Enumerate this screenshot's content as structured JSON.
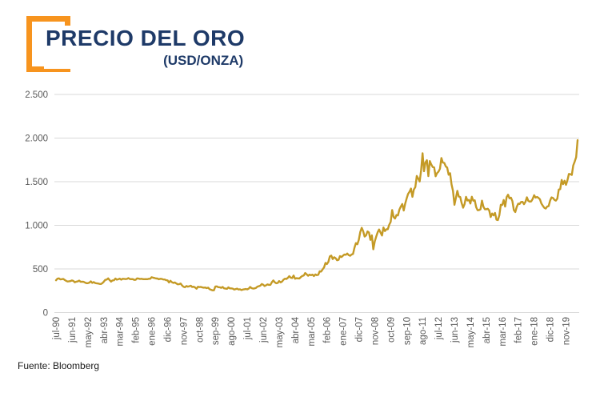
{
  "header": {
    "title": "PRECIO DEL ORO",
    "subtitle": "(USD/ONZA)"
  },
  "source": "Fuente: Bloomberg",
  "colors": {
    "accent_orange": "#F7941E",
    "title_navy": "#1E3A68",
    "line_gold": "#C49A26",
    "gridline": "#D9D9D9",
    "axis_text": "#595959"
  },
  "chart_data": {
    "type": "line",
    "title": "PRECIO DEL ORO",
    "subtitle": "(USD/ONZA)",
    "source": "Fuente: Bloomberg",
    "xlabel": "",
    "ylabel": "",
    "ylim": [
      0,
      2500
    ],
    "y_ticks": [
      0,
      500,
      1000,
      1500,
      2000,
      2500
    ],
    "y_tick_labels": [
      "0",
      "500",
      "1.000",
      "1.500",
      "2.000",
      "2.500"
    ],
    "grid": "horizontal",
    "legend": "none",
    "x_tick_interval_months": 11,
    "x_tick_labels": [
      "jul-90",
      "jun-91",
      "may-92",
      "abr-93",
      "mar-94",
      "feb-95",
      "ene-96",
      "dic-96",
      "nov-97",
      "oct-98",
      "sep-99",
      "ago-00",
      "jul-01",
      "jun-02",
      "may-03",
      "abr-04",
      "mar-05",
      "feb-06",
      "ene-07",
      "dic-07",
      "nov-08",
      "oct-09",
      "sep-10",
      "ago-11",
      "jul-12",
      "jun-13",
      "may-14",
      "abr-15",
      "mar-16",
      "feb-17",
      "ene-18",
      "dic-18",
      "nov-19"
    ],
    "series": [
      {
        "name": "Precio del oro (USD/onza)",
        "frequency": "monthly",
        "start": "jul-90",
        "end": "jul-20",
        "values": [
          370,
          388,
          392,
          380,
          382,
          386,
          374,
          363,
          356,
          358,
          361,
          368,
          362,
          347,
          354,
          357,
          366,
          353,
          354,
          353,
          344,
          337,
          337,
          343,
          358,
          340,
          349,
          339,
          335,
          333,
          329,
          327,
          337,
          354,
          375,
          378,
          392,
          372,
          355,
          369,
          370,
          390,
          377,
          382,
          389,
          377,
          387,
          386,
          384,
          386,
          395,
          384,
          383,
          383,
          375,
          376,
          392,
          389,
          385,
          387,
          383,
          382,
          384,
          382,
          387,
          387,
          405,
          400,
          396,
          391,
          390,
          382,
          387,
          386,
          379,
          379,
          371,
          369,
          345,
          364,
          348,
          340,
          345,
          334,
          324,
          325,
          333,
          311,
          296,
          290,
          304,
          297,
          301,
          308,
          293,
          296,
          288,
          273,
          296,
          292,
          294,
          288,
          285,
          287,
          280,
          286,
          268,
          261,
          255,
          255,
          299,
          300,
          291,
          290,
          283,
          294,
          278,
          275,
          272,
          289,
          277,
          277,
          274,
          264,
          269,
          274,
          264,
          267,
          258,
          264,
          267,
          270,
          266,
          274,
          293,
          280,
          275,
          277,
          282,
          297,
          302,
          308,
          327,
          319,
          304,
          313,
          323,
          317,
          318,
          348,
          368,
          347,
          336,
          339,
          361,
          346,
          355,
          376,
          388,
          385,
          398,
          417,
          400,
          396,
          424,
          388,
          394,
          392,
          391,
          407,
          420,
          425,
          453,
          438,
          422,
          435,
          428,
          435,
          418,
          437,
          429,
          433,
          473,
          470,
          495,
          517,
          569,
          556,
          582,
          644,
          653,
          613,
          634,
          623,
          599,
          604,
          647,
          636,
          651,
          665,
          662,
          677,
          659,
          651,
          665,
          672,
          743,
          796,
          783,
          834,
          923,
          971,
          933,
          871,
          885,
          930,
          918,
          833,
          885,
          725,
          815,
          870,
          920,
          952,
          917,
          883,
          975,
          934,
          954,
          955,
          1007,
          1040,
          1175,
          1095,
          1078,
          1118,
          1113,
          1180,
          1215,
          1244,
          1170,
          1248,
          1307,
          1360,
          1385,
          1421,
          1327,
          1411,
          1438,
          1566,
          1536,
          1502,
          1631,
          1826,
          1620,
          1722,
          1746,
          1564,
          1737,
          1697,
          1668,
          1664,
          1562,
          1598,
          1615,
          1648,
          1771,
          1719,
          1715,
          1676,
          1661,
          1580,
          1597,
          1469,
          1394,
          1235,
          1313,
          1395,
          1329,
          1324,
          1253,
          1202,
          1244,
          1326,
          1284,
          1291,
          1250,
          1327,
          1282,
          1287,
          1208,
          1173,
          1175,
          1184,
          1283,
          1213,
          1184,
          1184,
          1190,
          1171,
          1095,
          1135,
          1114,
          1142,
          1065,
          1060,
          1116,
          1235,
          1233,
          1290,
          1215,
          1322,
          1351,
          1309,
          1317,
          1277,
          1174,
          1152,
          1211,
          1248,
          1245,
          1268,
          1269,
          1242,
          1269,
          1321,
          1280,
          1271,
          1275,
          1303,
          1345,
          1318,
          1325,
          1315,
          1298,
          1250,
          1224,
          1201,
          1192,
          1215,
          1220,
          1282,
          1320,
          1313,
          1292,
          1283,
          1306,
          1410,
          1414,
          1520,
          1472,
          1511,
          1464,
          1517,
          1589,
          1586,
          1577,
          1687,
          1730,
          1781,
          1976
        ]
      }
    ]
  }
}
